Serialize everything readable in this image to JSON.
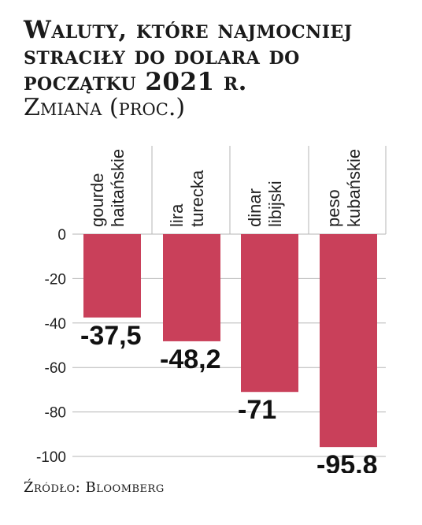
{
  "header": {
    "title": "Waluty, które najmocniej straciły do dolara do początku 2021 r.",
    "subtitle": "Zmiana (proc.)"
  },
  "footer": {
    "source": "Źródło: Bloomberg"
  },
  "colors": {
    "bar": "#c9405a",
    "grid": "#b5b5b5",
    "text": "#1a1a1a"
  },
  "chart_data": {
    "type": "bar",
    "categories": [
      [
        "gourde",
        "haitańskie"
      ],
      [
        "lira",
        "turecka"
      ],
      [
        "dinar",
        "libijski"
      ],
      [
        "peso",
        "kubańskie"
      ]
    ],
    "values": [
      -37.5,
      -48.2,
      -71,
      -95.8
    ],
    "value_labels": [
      "-37,5",
      "-48,2",
      "-71",
      "-95,8"
    ],
    "y_ticks": [
      0,
      -20,
      -40,
      -60,
      -80,
      -100
    ],
    "ylim": [
      -100,
      0
    ],
    "grid": true,
    "legend": "none"
  }
}
